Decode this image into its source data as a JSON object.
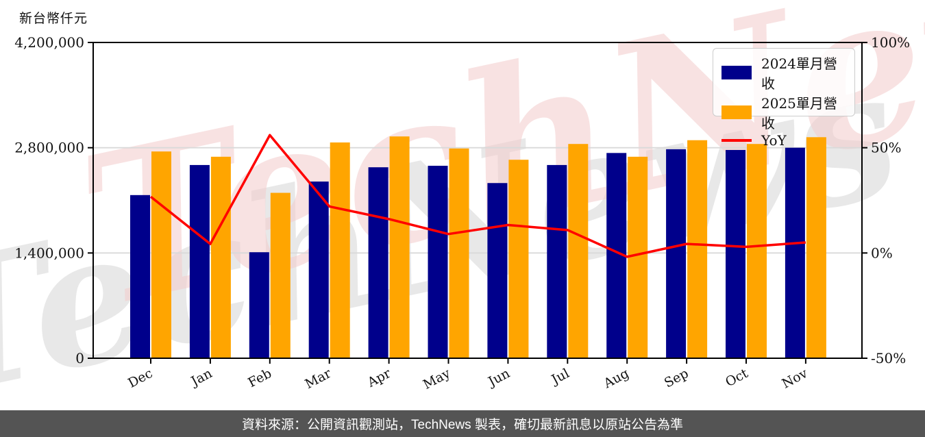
{
  "page": {
    "watermark": {
      "text": "TechNews"
    },
    "footer": {
      "text": "資料來源：公開資訊觀測站，TechNews 製表，確切最新訊息以原站公告為準",
      "bg_color": "#545454",
      "text_color": "#ffffff"
    }
  },
  "chart_data": {
    "type": "bar+line",
    "title": "",
    "y_axis_title": "新台幣仟元",
    "categories": [
      "Dec",
      "Jan",
      "Feb",
      "Mar",
      "Apr",
      "May",
      "Jun",
      "Jul",
      "Aug",
      "Sep",
      "Oct",
      "Nov"
    ],
    "series": [
      {
        "name": "2024單月營收",
        "type": "bar",
        "axis": "left",
        "color": "#00008B",
        "values": [
          2170000,
          2570000,
          1410000,
          2350000,
          2540000,
          2560000,
          2330000,
          2570000,
          2730000,
          2780000,
          2770000,
          2800000
        ]
      },
      {
        "name": "2025單月營收",
        "type": "bar",
        "axis": "left",
        "color": "#FFA500",
        "values": [
          2750000,
          2680000,
          2200000,
          2870000,
          2950000,
          2790000,
          2640000,
          2850000,
          2680000,
          2900000,
          2850000,
          2940000
        ]
      },
      {
        "name": "YoY",
        "type": "line",
        "axis": "right",
        "unit": "%",
        "color": "#FF0000",
        "values": [
          26.7,
          4.3,
          56.0,
          22.1,
          16.1,
          9.0,
          13.3,
          10.9,
          -1.8,
          4.3,
          2.9,
          5.0
        ]
      }
    ],
    "left_axis": {
      "min": 0,
      "max": 4200000,
      "tick_values": [
        0,
        1400000,
        2800000,
        4200000
      ],
      "tick_labels": [
        "0",
        "1,400,000",
        "2,800,000",
        "4,200,000"
      ]
    },
    "right_axis": {
      "min": -50,
      "max": 100,
      "tick_values": [
        -50,
        0,
        50,
        100
      ],
      "tick_labels": [
        "-50%",
        "0%",
        "50%",
        "100%"
      ]
    },
    "grid": "horizontal",
    "legend_position": "top-right"
  }
}
